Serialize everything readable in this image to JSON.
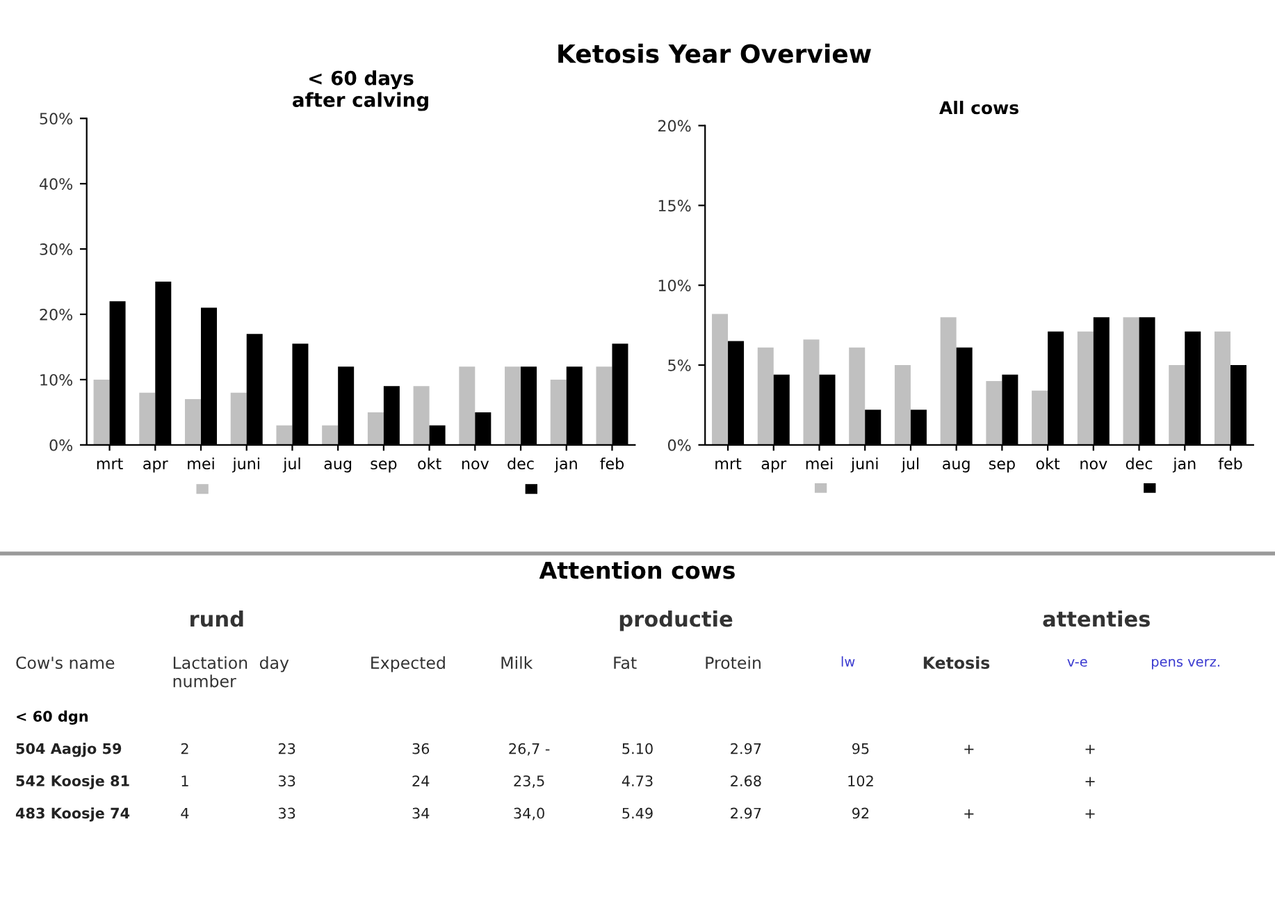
{
  "chart_data": [
    {
      "type": "bar",
      "title": "Ketosis Year Overview",
      "subtitle": "< 60 days\nafter calving",
      "categories": [
        "mrt",
        "apr",
        "mei",
        "juni",
        "jul",
        "aug",
        "sep",
        "okt",
        "nov",
        "dec",
        "jan",
        "feb"
      ],
      "series": [
        {
          "color": "#c0c0c0",
          "values": [
            10,
            8,
            7,
            8,
            3,
            3,
            5,
            9,
            12,
            12,
            10,
            12
          ]
        },
        {
          "color": "#000000",
          "values": [
            22,
            25,
            21,
            17,
            15.5,
            12,
            9,
            3,
            5,
            12,
            12,
            15.5
          ]
        }
      ],
      "ylim": [
        0,
        50
      ],
      "yticks": [
        {
          "value": 0,
          "label": "0%"
        },
        {
          "value": 10,
          "label": "10%"
        },
        {
          "value": 20,
          "label": "20%"
        },
        {
          "value": 30,
          "label": "30%"
        },
        {
          "value": 40,
          "label": "40%"
        },
        {
          "value": 50,
          "label": "50%"
        }
      ],
      "grid": false
    },
    {
      "type": "bar",
      "subtitle": "All cows",
      "categories": [
        "mrt",
        "apr",
        "mei",
        "juni",
        "jul",
        "aug",
        "sep",
        "okt",
        "nov",
        "dec",
        "jan",
        "feb"
      ],
      "series": [
        {
          "color": "#c0c0c0",
          "values": [
            8.2,
            6.1,
            6.6,
            6.1,
            5.0,
            8.0,
            4.0,
            3.4,
            7.1,
            8.0,
            5.0,
            7.1
          ]
        },
        {
          "color": "#000000",
          "values": [
            6.5,
            4.4,
            4.4,
            2.2,
            2.2,
            6.1,
            4.4,
            7.1,
            8.0,
            8.0,
            7.1,
            5.0
          ]
        }
      ],
      "ylim": [
        0,
        20
      ],
      "yticks": [
        {
          "value": 0,
          "label": "0%"
        },
        {
          "value": 5,
          "label": "5%"
        },
        {
          "value": 10,
          "label": "10%"
        },
        {
          "value": 15,
          "label": "15%"
        },
        {
          "value": 20,
          "label": "20%"
        }
      ],
      "grid": false
    },
    {
      "type": "other",
      "title": "Attention cows",
      "annotations": [
        "rund",
        "productie",
        "attenties",
        "Cow's name",
        "Lactation\nnumber",
        "day",
        "Expected",
        "Milk",
        "Fat",
        "Protein",
        "lw",
        "Ketosis",
        "v-e",
        "pens verz.",
        "< 60 dgn",
        "504 Aagjo 59",
        "2",
        "23",
        "36",
        "26,7 -",
        "5.10",
        "2.97",
        "95",
        "+",
        "+",
        null,
        "542 Koosje 81",
        "1",
        "33",
        "24",
        "23,5",
        "4.73",
        "2.68",
        "102",
        null,
        "+",
        null,
        "483 Koosje 74",
        "4",
        "33",
        "34",
        "34,0",
        "5.49",
        "2.97",
        "92",
        "+",
        "+",
        null
      ]
    }
  ]
}
